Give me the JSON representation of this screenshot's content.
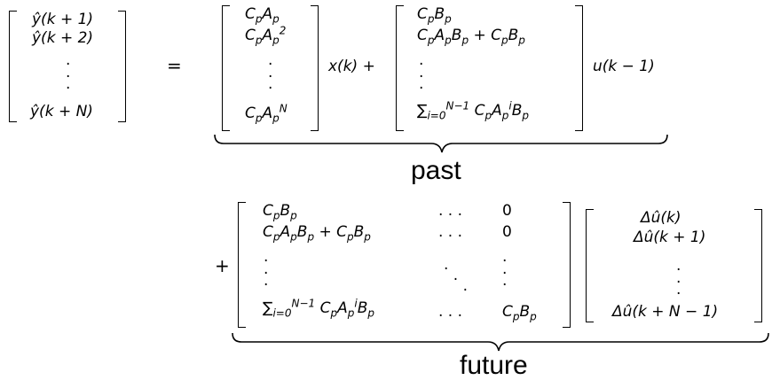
{
  "lhs": {
    "r1": "ŷ(k + 1)",
    "r2": "ŷ(k + 2)",
    "rN": "ŷ(k + N)"
  },
  "equals": "=",
  "past": {
    "label": "past",
    "m1": {
      "r1": "C<sub>p</sub>A<sub>p</sub>",
      "r2": "C<sub>p</sub>A<sub>p</sub><sup>2</sup>",
      "rN": "C<sub>p</sub>A<sub>p</sub><sup>N</sup>"
    },
    "x_term": "x(k) +",
    "m2": {
      "r1": "C<sub>p</sub>B<sub>p</sub>",
      "r2": "C<sub>p</sub>A<sub>p</sub>B<sub>p</sub> + C<sub>p</sub>B<sub>p</sub>",
      "rN": "∑<sub>i=0</sub><sup>N−1</sup> C<sub>p</sub>A<sub>p</sub><sup>i</sup>B<sub>p</sub>"
    },
    "u_term": "u(k − 1)"
  },
  "future": {
    "label": "future",
    "plus": "+",
    "m3": {
      "r1c1": "C<sub>p</sub>B<sub>p</sub>",
      "r1c2": ". . .",
      "r1c3": "0",
      "r2c1": "C<sub>p</sub>A<sub>p</sub>B<sub>p</sub> + C<sub>p</sub>B<sub>p</sub>",
      "r2c2": ". . .",
      "r2c3": "0",
      "rNc1": "∑<sub>i=0</sub><sup>N−1</sup> C<sub>p</sub>A<sub>p</sub><sup>i</sup>B<sub>p</sub>",
      "rNc2": ". . .",
      "rNc3": "C<sub>p</sub>B<sub>p</sub>"
    },
    "v": {
      "r1": "Δû(k)",
      "r2": "Δû(k + 1)",
      "rN": "Δû(k + N − 1)"
    }
  }
}
